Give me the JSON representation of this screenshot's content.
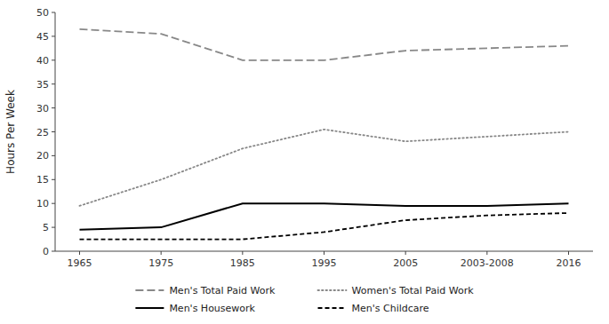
{
  "chart_data": {
    "type": "line",
    "categories": [
      "1965",
      "1975",
      "1985",
      "1995",
      "2005",
      "2003-2008",
      "2016"
    ],
    "series": [
      {
        "name": "Men's Total Paid Work",
        "color": "#888888",
        "line_style": "long-dashed",
        "values": [
          46.5,
          45.5,
          40.0,
          40.0,
          42.0,
          42.5,
          43.0
        ]
      },
      {
        "name": "Women's Total Paid Work",
        "color": "#888888",
        "line_style": "dotted",
        "values": [
          9.5,
          15.0,
          21.5,
          25.5,
          23.0,
          24.0,
          25.0
        ]
      },
      {
        "name": "Men's Housework",
        "color": "#000000",
        "line_style": "solid",
        "values": [
          4.5,
          5.0,
          10.0,
          10.0,
          9.5,
          9.5,
          10.0
        ]
      },
      {
        "name": "Men's Childcare",
        "color": "#000000",
        "line_style": "dashed",
        "values": [
          2.5,
          2.5,
          2.5,
          4.0,
          6.5,
          7.5,
          8.0
        ]
      }
    ],
    "ylabel": "Hours Per Week",
    "ylim": [
      0,
      50
    ],
    "yticks": [
      0,
      5,
      10,
      15,
      20,
      25,
      30,
      35,
      40,
      45,
      50
    ],
    "grid": false,
    "legend": "bottom"
  }
}
